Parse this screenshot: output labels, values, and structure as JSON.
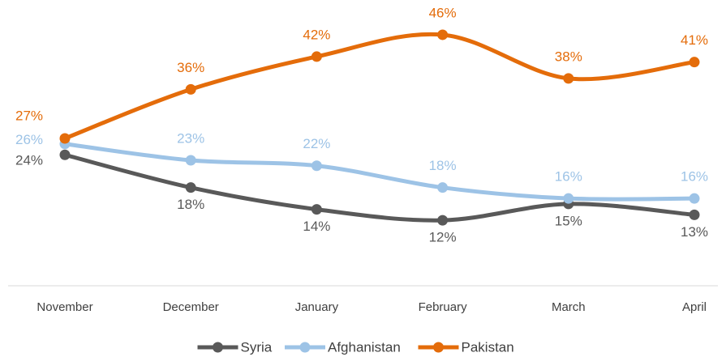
{
  "chart_data": {
    "type": "line",
    "categories": [
      "November",
      "December",
      "January",
      "February",
      "March",
      "April"
    ],
    "series": [
      {
        "name": "Syria",
        "color": "#595959",
        "values": [
          24,
          18,
          14,
          12,
          15,
          13
        ],
        "value_labels": [
          "24%",
          "18%",
          "14%",
          "12%",
          "15%",
          "13%"
        ]
      },
      {
        "name": "Afghanistan",
        "color": "#9dc3e6",
        "values": [
          26,
          23,
          22,
          18,
          16,
          16
        ],
        "value_labels": [
          "26%",
          "23%",
          "22%",
          "18%",
          "16%",
          "16%"
        ]
      },
      {
        "name": "Pakistan",
        "color": "#e46c0a",
        "values": [
          27,
          36,
          42,
          46,
          38,
          41
        ],
        "value_labels": [
          "27%",
          "36%",
          "42%",
          "46%",
          "38%",
          "41%"
        ]
      }
    ],
    "ylim": [
      0,
      50
    ]
  }
}
